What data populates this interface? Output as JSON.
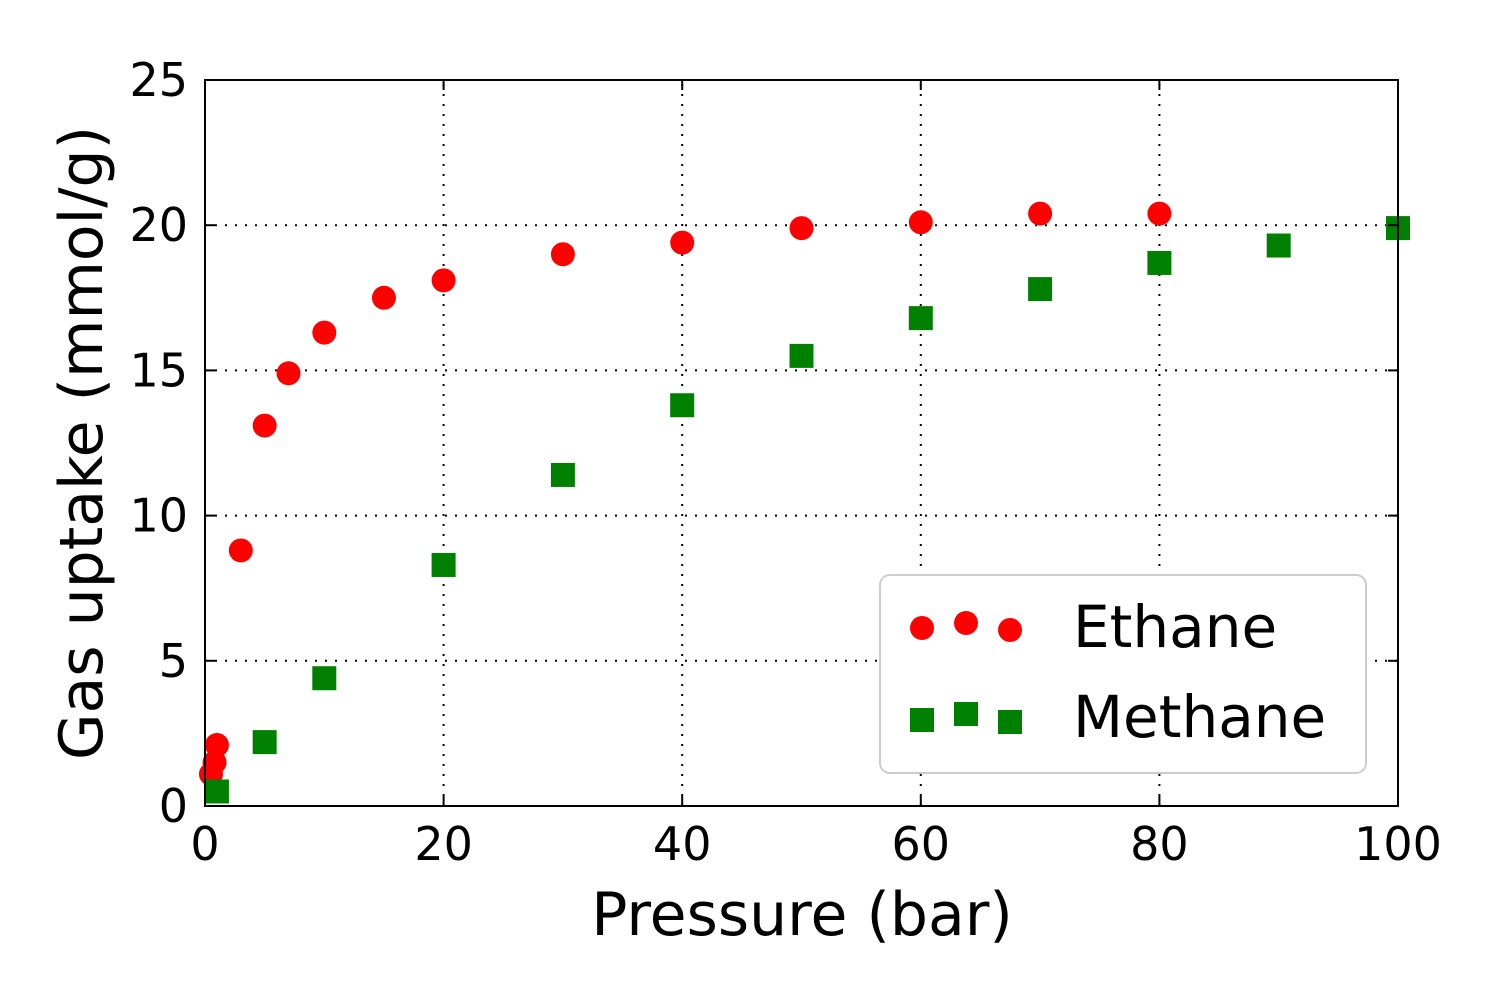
{
  "chart_data": {
    "type": "scatter",
    "xlabel": "Pressure (bar)",
    "ylabel": "Gas uptake (mmol/g)",
    "xlim": [
      0,
      100
    ],
    "ylim": [
      0,
      25
    ],
    "xticks": [
      "0",
      "20",
      "40",
      "60",
      "80",
      "100"
    ],
    "yticks": [
      "0",
      "5",
      "10",
      "15",
      "20",
      "25"
    ],
    "grid": true,
    "legend_position": "bottom-right",
    "series": [
      {
        "name": "Ethane",
        "marker": "circle",
        "color": "#ff0000",
        "points": [
          [
            0.5,
            1.1
          ],
          [
            0.8,
            1.5
          ],
          [
            1,
            2.1
          ],
          [
            3,
            8.8
          ],
          [
            5,
            13.1
          ],
          [
            7,
            14.9
          ],
          [
            10,
            16.3
          ],
          [
            15,
            17.5
          ],
          [
            20,
            18.1
          ],
          [
            30,
            19.0
          ],
          [
            40,
            19.4
          ],
          [
            50,
            19.9
          ],
          [
            60,
            20.1
          ],
          [
            70,
            20.4
          ],
          [
            80,
            20.4
          ]
        ]
      },
      {
        "name": "Methane",
        "marker": "square",
        "color": "#008000",
        "points": [
          [
            1,
            0.5
          ],
          [
            5,
            2.2
          ],
          [
            10,
            4.4
          ],
          [
            20,
            8.3
          ],
          [
            30,
            11.4
          ],
          [
            40,
            13.8
          ],
          [
            50,
            15.5
          ],
          [
            60,
            16.8
          ],
          [
            70,
            17.8
          ],
          [
            80,
            18.7
          ],
          [
            90,
            19.3
          ],
          [
            100,
            19.9
          ]
        ]
      }
    ]
  }
}
